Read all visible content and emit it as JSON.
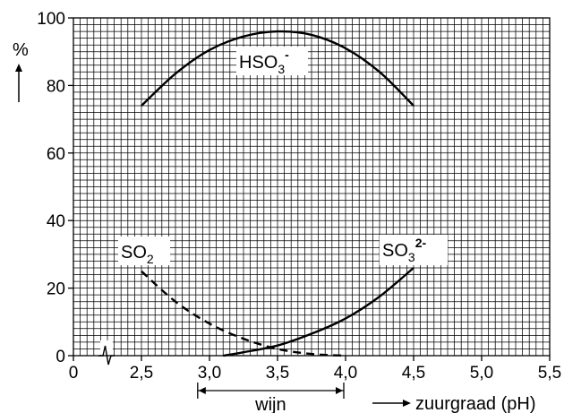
{
  "chart_data": {
    "type": "line",
    "title": "",
    "xlabel": "zuurgraad (pH)",
    "ylabel": "%",
    "xlim": [
      0,
      5.5
    ],
    "ylim": [
      0,
      100
    ],
    "x_tick_labels": [
      "0",
      "2,5",
      "3,0",
      "3,5",
      "4,0",
      "4,5",
      "5,0",
      "5,5"
    ],
    "x_tick_values": [
      0,
      2.5,
      3.0,
      3.5,
      4.0,
      4.5,
      5.0,
      5.5
    ],
    "y_tick_labels": [
      "0",
      "20",
      "40",
      "60",
      "80",
      "100"
    ],
    "y_tick_values": [
      0,
      20,
      40,
      60,
      80,
      100
    ],
    "axis_break": "between 0 and 2,5",
    "grid": true,
    "legend": "none",
    "series": [
      {
        "name": "HSO3-",
        "label_base": "HSO",
        "label_sub": "3",
        "label_sup": "-",
        "style": "solid",
        "x": [
          2.5,
          2.75,
          3.0,
          3.25,
          3.5,
          3.75,
          4.0,
          4.25,
          4.5
        ],
        "y": [
          74,
          83.5,
          90.5,
          94.5,
          96,
          95,
          91,
          84,
          74
        ]
      },
      {
        "name": "SO2",
        "label_base": "SO",
        "label_sub": "2",
        "label_sup": "",
        "style": "dashed",
        "x": [
          2.5,
          2.75,
          3.0,
          3.25,
          3.5,
          3.75,
          4.0
        ],
        "y": [
          25,
          16,
          9.5,
          5,
          2,
          0.5,
          0
        ]
      },
      {
        "name": "SO3 2-",
        "label_base": "SO",
        "label_sub": "3",
        "label_sup": "2-",
        "style": "solid",
        "x": [
          3.1,
          3.25,
          3.5,
          3.75,
          4.0,
          4.25,
          4.5
        ],
        "y": [
          0,
          1,
          3,
          6.5,
          11,
          17.5,
          26
        ]
      }
    ],
    "annotations": [
      {
        "text": "wijn",
        "from_x": 2.9,
        "to_x": 4.0
      }
    ]
  }
}
